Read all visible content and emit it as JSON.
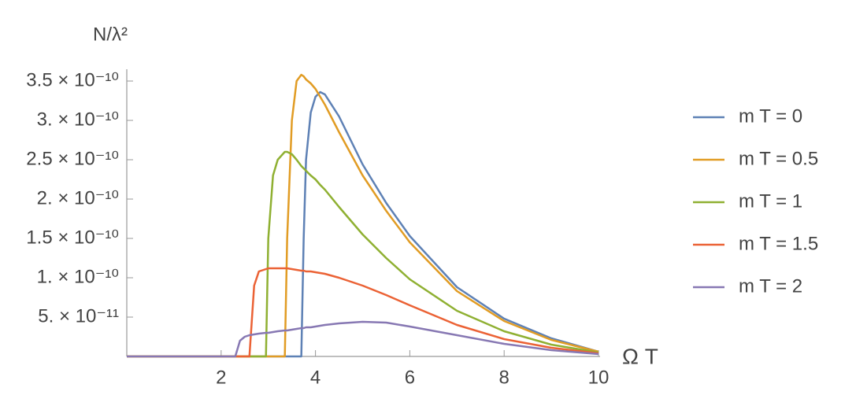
{
  "chart_data": {
    "type": "line",
    "x_label": "Ω T",
    "y_label": "N/λ²",
    "x": [
      0,
      2.3,
      2.4,
      2.5,
      2.6,
      2.7,
      2.8,
      2.95,
      3,
      3.1,
      3.2,
      3.35,
      3.4,
      3.5,
      3.6,
      3.7,
      3.75,
      3.8,
      3.9,
      4,
      4.1,
      4.2,
      4.5,
      5,
      5.5,
      6,
      7,
      8,
      9,
      10
    ],
    "series": [
      {
        "name": "m T = 0",
        "color": "#5e81b5",
        "values": [
          0,
          0,
          0,
          0,
          0,
          0,
          0,
          0,
          0,
          0,
          0,
          0,
          0,
          0,
          0,
          0,
          1.5e-10,
          2.5e-10,
          3.1e-10,
          3.3e-10,
          3.36e-10,
          3.33e-10,
          3.05e-10,
          2.44e-10,
          1.95e-10,
          1.53e-10,
          8.8e-11,
          4.8e-11,
          2.3e-11,
          6e-12
        ]
      },
      {
        "name": "m T = 0.5",
        "color": "#e19c24",
        "values": [
          0,
          0,
          0,
          0,
          0,
          0,
          0,
          0,
          0,
          0,
          0,
          0,
          1.5e-10,
          3e-10,
          3.5e-10,
          3.58e-10,
          3.56e-10,
          3.52e-10,
          3.47e-10,
          3.4e-10,
          3.3e-10,
          3.2e-10,
          2.85e-10,
          2.3e-10,
          1.85e-10,
          1.45e-10,
          8.3e-11,
          4.5e-11,
          2.1e-11,
          6e-12
        ]
      },
      {
        "name": "m T = 1",
        "color": "#8fb032",
        "values": [
          0,
          0,
          0,
          0,
          0,
          0,
          0,
          0,
          1.5e-10,
          2.3e-10,
          2.5e-10,
          2.6e-10,
          2.6e-10,
          2.57e-10,
          2.5e-10,
          2.42e-10,
          2.39e-10,
          2.36e-10,
          2.3e-10,
          2.25e-10,
          2.18e-10,
          2.12e-10,
          1.9e-10,
          1.55e-10,
          1.25e-10,
          9.8e-11,
          5.8e-11,
          3.2e-11,
          1.5e-11,
          5e-12
        ]
      },
      {
        "name": "m T = 1.5",
        "color": "#eb6235",
        "values": [
          0,
          0,
          0,
          0,
          0,
          9e-11,
          1.08e-10,
          1.11e-10,
          1.12e-10,
          1.12e-10,
          1.12e-10,
          1.12e-10,
          1.12e-10,
          1.11e-10,
          1.1e-10,
          1.09e-10,
          1.09e-10,
          1.08e-10,
          1.08e-10,
          1.07e-10,
          1.06e-10,
          1.05e-10,
          1e-10,
          9e-11,
          7.8e-11,
          6.5e-11,
          4e-11,
          2.2e-11,
          1.1e-11,
          4e-12
        ]
      },
      {
        "name": "m T = 2",
        "color": "#8778b3",
        "values": [
          0,
          0,
          2e-11,
          2.5e-11,
          2.7e-11,
          2.8e-11,
          2.9e-11,
          3e-11,
          3e-11,
          3.1e-11,
          3.2e-11,
          3.3e-11,
          3.3e-11,
          3.4e-11,
          3.5e-11,
          3.6e-11,
          3.6e-11,
          3.7e-11,
          3.7e-11,
          3.8e-11,
          3.9e-11,
          4e-11,
          4.2e-11,
          4.4e-11,
          4.3e-11,
          3.8e-11,
          2.7e-11,
          1.6e-11,
          8e-12,
          3e-12
        ]
      }
    ],
    "xlim": [
      0,
      10
    ],
    "xticks": [
      2,
      4,
      6,
      8,
      10
    ],
    "ylim": [
      0,
      3.6e-10
    ],
    "yticks": [
      {
        "value": 5e-11,
        "label": "5. × 10⁻¹¹"
      },
      {
        "value": 1e-10,
        "label": "1. × 10⁻¹⁰"
      },
      {
        "value": 1.5e-10,
        "label": "1.5 × 10⁻¹⁰"
      },
      {
        "value": 2e-10,
        "label": "2. × 10⁻¹⁰"
      },
      {
        "value": 2.5e-10,
        "label": "2.5 × 10⁻¹⁰"
      },
      {
        "value": 3e-10,
        "label": "3. × 10⁻¹⁰"
      },
      {
        "value": 3.5e-10,
        "label": "3.5 × 10⁻¹⁰"
      }
    ],
    "legend": "right",
    "grid": false
  }
}
